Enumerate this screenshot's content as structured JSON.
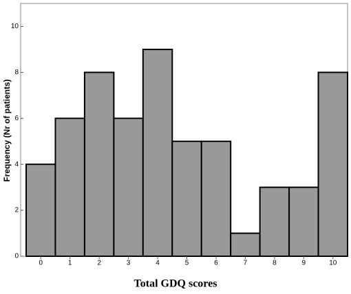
{
  "chart_data": {
    "type": "bar",
    "categories": [
      "0",
      "1",
      "2",
      "3",
      "4",
      "5",
      "6",
      "7",
      "8",
      "9",
      "10"
    ],
    "values": [
      4,
      6,
      8,
      6,
      9,
      5,
      5,
      1,
      3,
      3,
      8
    ],
    "color": "#999999",
    "ylim": [
      0,
      11
    ],
    "yticks": [
      0,
      2,
      4,
      6,
      8,
      10
    ],
    "x_label": "Total GDQ scores",
    "y_label": "Frequency (Nr of patients)"
  }
}
